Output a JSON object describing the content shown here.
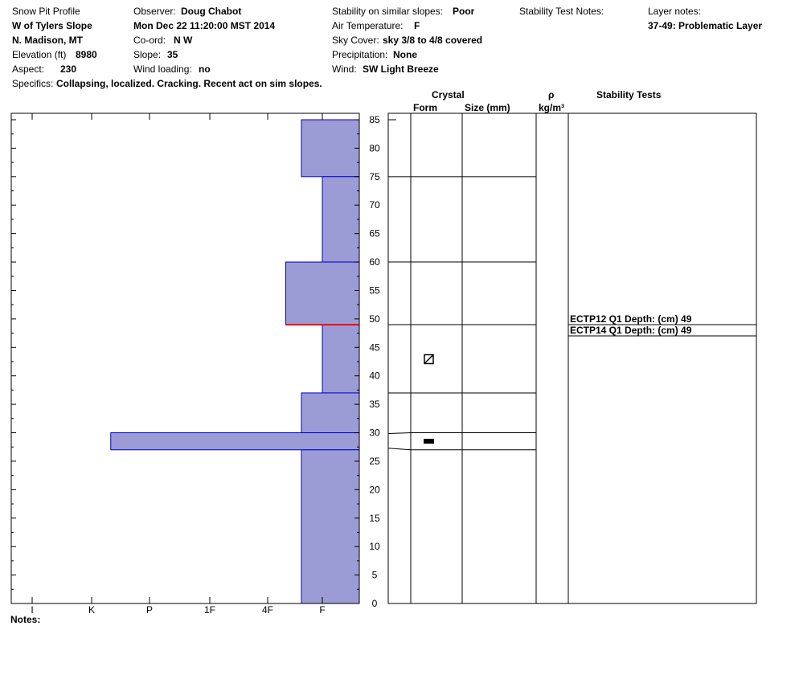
{
  "header": {
    "report_title": "Snow Pit Profile",
    "location": "W of Tylers Slope",
    "region": "N. Madison, MT",
    "elevation_label": "Elevation (ft)",
    "elevation": "8980",
    "aspect_label": "Aspect:",
    "aspect": "230",
    "specifics_label": "Specifics:",
    "specifics": "Collapsing, localized. Cracking. Recent act on sim slopes.",
    "observer_label": "Observer:",
    "observer": "Doug Chabot",
    "datetime": "Mon Dec 22 11:20:00 MST 2014",
    "coord_label": "Co-ord:",
    "coord": "N  W",
    "slope_label": "Slope:",
    "slope": "35",
    "wind_loading_label": "Wind loading:",
    "wind_loading": "no",
    "stability_label": "Stability on similar slopes:",
    "stability": "Poor",
    "air_temp_label": "Air Temperature:",
    "air_temp": "F",
    "sky_label": "Sky Cover:",
    "sky": "sky 3/8 to 4/8 covered",
    "precip_label": "Precipitation:",
    "precip": "None",
    "wind_label": "Wind:",
    "wind": "SW Light Breeze",
    "stability_notes_label": "Stability Test Notes:",
    "layer_notes_label": "Layer notes:",
    "layer_notes": "37-49: Problematic Layer",
    "notes_label": "Notes:"
  },
  "columns": {
    "crystal": "Crystal",
    "form": "Form",
    "size": "Size (mm)",
    "rho": "ρ",
    "density_unit": "kg/m³",
    "stability_tests": "Stability Tests"
  },
  "chart_data": {
    "type": "bar",
    "orientation": "horizontal",
    "y_range": [
      0,
      85
    ],
    "y_ticks": [
      0,
      5,
      10,
      15,
      20,
      25,
      30,
      35,
      40,
      45,
      50,
      55,
      60,
      65,
      70,
      75,
      80,
      85
    ],
    "hardness_scale": [
      "I",
      "K",
      "P",
      "1F",
      "4F",
      "F"
    ],
    "hardness_index": {
      "I": 0,
      "K": 1,
      "P": 2,
      "1F": 3,
      "4F": 4,
      "F": 5
    },
    "layers": [
      {
        "bottom": 75,
        "top": 85,
        "hardness": "F+"
      },
      {
        "bottom": 60,
        "top": 75,
        "hardness": "F"
      },
      {
        "bottom": 49,
        "top": 60,
        "hardness": "4F+"
      },
      {
        "bottom": 37,
        "top": 49,
        "hardness": "F"
      },
      {
        "bottom": 30,
        "top": 37,
        "hardness": "F+"
      },
      {
        "bottom": 27,
        "top": 30,
        "hardness": "K+"
      },
      {
        "bottom": 0,
        "top": 27,
        "hardness": "F+"
      }
    ],
    "layer_boundaries": [
      75,
      60,
      49,
      37,
      30,
      27
    ],
    "problem_depth": 49,
    "crystals": [
      {
        "depth": 43,
        "form": "faceted"
      },
      {
        "depth": 28.5,
        "form": "crust"
      }
    ],
    "stability_tests": [
      {
        "text": "ECTP12 Q1 Depth: (cm) 49",
        "depth": 49
      },
      {
        "text": "ECTP14 Q1 Depth: (cm) 49",
        "depth": 49
      }
    ],
    "colors": {
      "fill": "#9b9bd6",
      "edge": "#0000cc",
      "problem": "#ee0000"
    }
  }
}
